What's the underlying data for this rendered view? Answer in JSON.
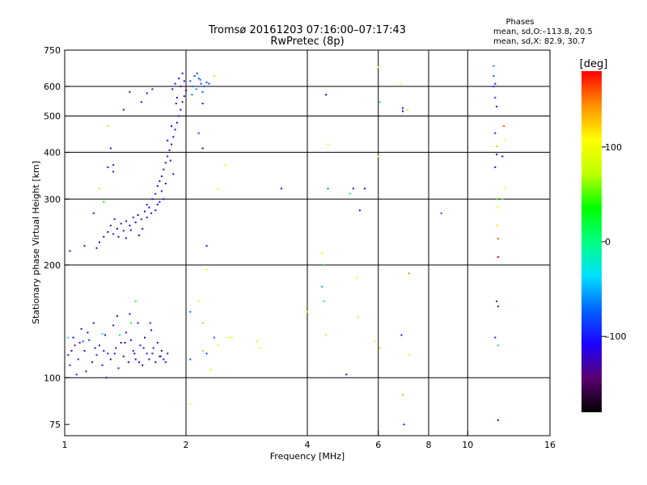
{
  "chart_data": {
    "type": "scatter",
    "title": "Tromsø 20161203 07:16:00–07:17:43",
    "subtitle": "RwPretec (8p)",
    "xlabel": "Frequency [MHz]",
    "ylabel": "Stationary phase Virtual Height [km]",
    "x_scale": "log",
    "y_scale": "log",
    "xlim": [
      1,
      16
    ],
    "ylim": [
      70,
      750
    ],
    "x_ticks": [
      1,
      2,
      4,
      6,
      8,
      10,
      16
    ],
    "x_tick_labels": [
      "1",
      "2",
      "4",
      "6",
      "8",
      "10",
      "16"
    ],
    "x_grid": [
      2,
      4,
      6,
      8,
      10
    ],
    "y_ticks": [
      75,
      100,
      200,
      300,
      400,
      500,
      600,
      750
    ],
    "y_tick_labels": [
      "75",
      "100",
      "200",
      "300",
      "400",
      "500",
      "600",
      "750"
    ],
    "y_grid": [
      100,
      200,
      300,
      400,
      500,
      600
    ],
    "grid": true,
    "info": {
      "heading": "Phases",
      "line1": "mean, sd,O:–113.8, 20.5",
      "line2": "mean, sd,X:  82.9, 30.7"
    },
    "colorbar": {
      "unit": "[deg]",
      "range": [
        -180,
        180
      ],
      "ticks": [
        100,
        0,
        -100
      ],
      "tick_labels": [
        "100",
        "0",
        "–100"
      ],
      "colors": [
        "#000000",
        "#5a0070",
        "#1e00ff",
        "#0064ff",
        "#00e0ff",
        "#00ff80",
        "#00ff00",
        "#c0ff00",
        "#ffff00",
        "#ff9000",
        "#ff0000"
      ]
    },
    "points": [
      [
        1.02,
        115,
        -120
      ],
      [
        1.03,
        108,
        -100
      ],
      [
        1.05,
        128,
        -110
      ],
      [
        1.06,
        122,
        -130
      ],
      [
        1.08,
        112,
        -95
      ],
      [
        1.1,
        135,
        -120
      ],
      [
        1.12,
        118,
        -105
      ],
      [
        1.13,
        104,
        -125
      ],
      [
        1.15,
        126,
        -90
      ],
      [
        1.17,
        110,
        -115
      ],
      [
        1.18,
        140,
        -120
      ],
      [
        1.2,
        115,
        -100
      ],
      [
        1.22,
        122,
        -130
      ],
      [
        1.24,
        108,
        -110
      ],
      [
        1.26,
        130,
        -120
      ],
      [
        1.28,
        116,
        -95
      ],
      [
        1.3,
        112,
        -125
      ],
      [
        1.32,
        138,
        -110
      ],
      [
        1.34,
        120,
        -140
      ],
      [
        1.36,
        106,
        -100
      ],
      [
        1.38,
        124,
        -115
      ],
      [
        1.4,
        114,
        -120
      ],
      [
        1.42,
        132,
        -105
      ],
      [
        1.44,
        110,
        -135
      ],
      [
        1.46,
        126,
        -110
      ],
      [
        1.48,
        118,
        -95
      ],
      [
        1.5,
        112,
        -120
      ],
      [
        1.52,
        140,
        -125
      ],
      [
        1.54,
        122,
        -110
      ],
      [
        1.56,
        108,
        -130
      ],
      [
        1.58,
        128,
        -115
      ],
      [
        1.6,
        116,
        -100
      ],
      [
        1.62,
        112,
        -120
      ],
      [
        1.64,
        134,
        -110
      ],
      [
        1.66,
        120,
        -135
      ],
      [
        1.68,
        110,
        -115
      ],
      [
        1.7,
        124,
        -105
      ],
      [
        1.72,
        114,
        -120
      ],
      [
        1.74,
        118,
        -125
      ],
      [
        1.76,
        112,
        -110
      ],
      [
        1.78,
        110,
        -100
      ],
      [
        1.8,
        116,
        -120
      ],
      [
        1.04,
        118,
        -140
      ],
      [
        1.09,
        124,
        -115
      ],
      [
        1.14,
        132,
        -105
      ],
      [
        1.19,
        120,
        -125
      ],
      [
        1.25,
        118,
        -115
      ],
      [
        1.33,
        116,
        -120
      ],
      [
        1.41,
        124,
        -105
      ],
      [
        1.49,
        116,
        -130
      ],
      [
        1.57,
        120,
        -115
      ],
      [
        1.65,
        116,
        -120
      ],
      [
        1.73,
        114,
        -110
      ],
      [
        1.07,
        102,
        -95
      ],
      [
        1.27,
        100,
        -110
      ],
      [
        1.35,
        146,
        -120
      ],
      [
        1.45,
        148,
        -110
      ],
      [
        1.53,
        110,
        -100
      ],
      [
        1.63,
        140,
        -115
      ],
      [
        1.11,
        125,
        -85
      ],
      [
        1.37,
        130,
        10
      ],
      [
        1.5,
        160,
        20
      ],
      [
        1.46,
        140,
        30
      ],
      [
        1.02,
        128,
        -30
      ],
      [
        1.24,
        131,
        -20
      ],
      [
        1.25,
        238,
        -120
      ],
      [
        1.28,
        245,
        -110
      ],
      [
        1.3,
        255,
        -130
      ],
      [
        1.32,
        242,
        -100
      ],
      [
        1.35,
        250,
        -120
      ],
      [
        1.38,
        258,
        -115
      ],
      [
        1.4,
        247,
        -125
      ],
      [
        1.42,
        262,
        -110
      ],
      [
        1.45,
        255,
        -120
      ],
      [
        1.48,
        268,
        -130
      ],
      [
        1.5,
        260,
        -110
      ],
      [
        1.52,
        272,
        -120
      ],
      [
        1.55,
        265,
        -100
      ],
      [
        1.58,
        278,
        -125
      ],
      [
        1.6,
        290,
        -115
      ],
      [
        1.62,
        285,
        -120
      ],
      [
        1.65,
        300,
        -110
      ],
      [
        1.68,
        310,
        -130
      ],
      [
        1.7,
        325,
        -120
      ],
      [
        1.72,
        335,
        -110
      ],
      [
        1.74,
        345,
        -125
      ],
      [
        1.76,
        360,
        -115
      ],
      [
        1.78,
        375,
        -120
      ],
      [
        1.8,
        390,
        -110
      ],
      [
        1.82,
        405,
        -130
      ],
      [
        1.84,
        420,
        -120
      ],
      [
        1.86,
        440,
        -110
      ],
      [
        1.88,
        460,
        -125
      ],
      [
        1.9,
        480,
        -115
      ],
      [
        1.92,
        500,
        -120
      ],
      [
        1.94,
        520,
        -110
      ],
      [
        1.96,
        545,
        -130
      ],
      [
        1.98,
        565,
        -120
      ],
      [
        2.0,
        585,
        -110
      ],
      [
        1.88,
        610,
        -120
      ],
      [
        1.92,
        630,
        -115
      ],
      [
        1.96,
        650,
        -125
      ],
      [
        1.85,
        590,
        -110
      ],
      [
        1.9,
        560,
        -120
      ],
      [
        1.83,
        380,
        -115
      ],
      [
        1.86,
        350,
        -120
      ],
      [
        1.8,
        430,
        -110
      ],
      [
        1.78,
        330,
        -125
      ],
      [
        1.76,
        300,
        -120
      ],
      [
        1.72,
        295,
        -115
      ],
      [
        1.68,
        280,
        -110
      ],
      [
        1.64,
        275,
        -120
      ],
      [
        1.56,
        250,
        -115
      ],
      [
        1.46,
        248,
        -120
      ],
      [
        1.36,
        238,
        -130
      ],
      [
        1.33,
        265,
        -100
      ],
      [
        1.42,
        236,
        -110
      ],
      [
        1.53,
        240,
        -125
      ],
      [
        1.6,
        268,
        -120
      ],
      [
        1.7,
        290,
        -110
      ],
      [
        1.74,
        315,
        -120
      ],
      [
        1.84,
        470,
        -110
      ],
      [
        1.94,
        600,
        -120
      ],
      [
        1.98,
        620,
        -115
      ],
      [
        1.89,
        540,
        -130
      ],
      [
        1.45,
        580,
        -120
      ],
      [
        1.6,
        575,
        -110
      ],
      [
        1.65,
        590,
        -125
      ],
      [
        1.55,
        545,
        -115
      ],
      [
        1.4,
        520,
        -120
      ],
      [
        1.3,
        410,
        -110
      ],
      [
        1.32,
        370,
        -125
      ],
      [
        1.28,
        365,
        -120
      ],
      [
        1.32,
        355,
        -130
      ],
      [
        1.18,
        275,
        -115
      ],
      [
        1.2,
        222,
        -110
      ],
      [
        1.22,
        230,
        -120
      ],
      [
        1.12,
        225,
        -130
      ],
      [
        1.03,
        218,
        -110
      ],
      [
        1.28,
        470,
        70
      ],
      [
        1.22,
        320,
        70
      ],
      [
        1.25,
        295,
        30
      ],
      [
        2.05,
        620,
        -80
      ],
      [
        2.08,
        600,
        -70
      ],
      [
        2.1,
        640,
        -90
      ],
      [
        2.12,
        590,
        -60
      ],
      [
        2.15,
        630,
        -75
      ],
      [
        2.18,
        610,
        -85
      ],
      [
        2.2,
        580,
        -80
      ],
      [
        2.22,
        600,
        -70
      ],
      [
        2.07,
        570,
        -65
      ],
      [
        2.13,
        650,
        -85
      ],
      [
        2.17,
        625,
        -75
      ],
      [
        2.25,
        615,
        -80
      ],
      [
        2.28,
        610,
        -90
      ],
      [
        2.35,
        640,
        70
      ],
      [
        2.2,
        540,
        -110
      ],
      [
        2.2,
        410,
        -120
      ],
      [
        2.25,
        225,
        -110
      ],
      [
        2.15,
        450,
        -90
      ],
      [
        2.05,
        112,
        -80
      ],
      [
        2.2,
        118,
        130
      ],
      [
        2.25,
        116,
        -90
      ],
      [
        2.35,
        128,
        -80
      ],
      [
        2.4,
        122,
        90
      ],
      [
        2.55,
        128,
        90
      ],
      [
        2.6,
        128,
        90
      ],
      [
        2.05,
        150,
        -70
      ],
      [
        2.15,
        160,
        110
      ],
      [
        2.2,
        140,
        60
      ],
      [
        2.3,
        105,
        90
      ],
      [
        2.05,
        85,
        110
      ],
      [
        2.25,
        194,
        110
      ],
      [
        2.4,
        320,
        80
      ],
      [
        2.5,
        370,
        110
      ],
      [
        3.0,
        125,
        120
      ],
      [
        3.05,
        120,
        110
      ],
      [
        3.45,
        320,
        -120
      ],
      [
        4.0,
        150,
        110
      ],
      [
        4.4,
        200,
        20
      ],
      [
        4.35,
        215,
        80
      ],
      [
        4.35,
        175,
        -50
      ],
      [
        4.4,
        160,
        -20
      ],
      [
        4.45,
        130,
        120
      ],
      [
        4.5,
        420,
        110
      ],
      [
        4.5,
        320,
        -70
      ],
      [
        4.45,
        570,
        -110
      ],
      [
        5.4,
        280,
        -120
      ],
      [
        5.3,
        185,
        110
      ],
      [
        5.2,
        320,
        -120
      ],
      [
        5.1,
        310,
        20
      ],
      [
        5.35,
        145,
        120
      ],
      [
        5.0,
        102,
        -120
      ],
      [
        5.55,
        320,
        -110
      ],
      [
        5.9,
        125,
        110
      ],
      [
        6.0,
        390,
        110
      ],
      [
        6.05,
        545,
        10
      ],
      [
        6.0,
        675,
        110
      ],
      [
        6.05,
        120,
        120
      ],
      [
        6.8,
        605,
        110
      ],
      [
        6.9,
        515,
        -110
      ],
      [
        6.9,
        525,
        -110
      ],
      [
        7.1,
        520,
        120
      ],
      [
        7.15,
        190,
        150
      ],
      [
        6.85,
        130,
        -120
      ],
      [
        6.9,
        90,
        60
      ],
      [
        6.95,
        75,
        -100
      ],
      [
        7.15,
        115,
        110
      ],
      [
        8.6,
        275,
        -80
      ],
      [
        11.6,
        680,
        -60
      ],
      [
        11.6,
        640,
        -80
      ],
      [
        11.6,
        600,
        -90
      ],
      [
        11.7,
        610,
        -100
      ],
      [
        11.7,
        560,
        -90
      ],
      [
        11.8,
        530,
        -110
      ],
      [
        11.7,
        450,
        -110
      ],
      [
        11.8,
        415,
        130
      ],
      [
        11.8,
        395,
        -110
      ],
      [
        11.7,
        365,
        -110
      ],
      [
        11.8,
        300,
        40
      ],
      [
        11.9,
        285,
        110
      ],
      [
        11.9,
        235,
        160
      ],
      [
        11.9,
        210,
        180
      ],
      [
        11.8,
        160,
        -120
      ],
      [
        11.9,
        155,
        -120
      ],
      [
        11.7,
        128,
        -100
      ],
      [
        11.9,
        122,
        -20
      ],
      [
        11.9,
        77,
        -120
      ],
      [
        12.3,
        470,
        160
      ],
      [
        12.4,
        430,
        110
      ],
      [
        12.4,
        320,
        110
      ],
      [
        12.2,
        390,
        -110
      ],
      [
        12.2,
        300,
        60
      ],
      [
        11.85,
        255,
        120
      ]
    ]
  }
}
